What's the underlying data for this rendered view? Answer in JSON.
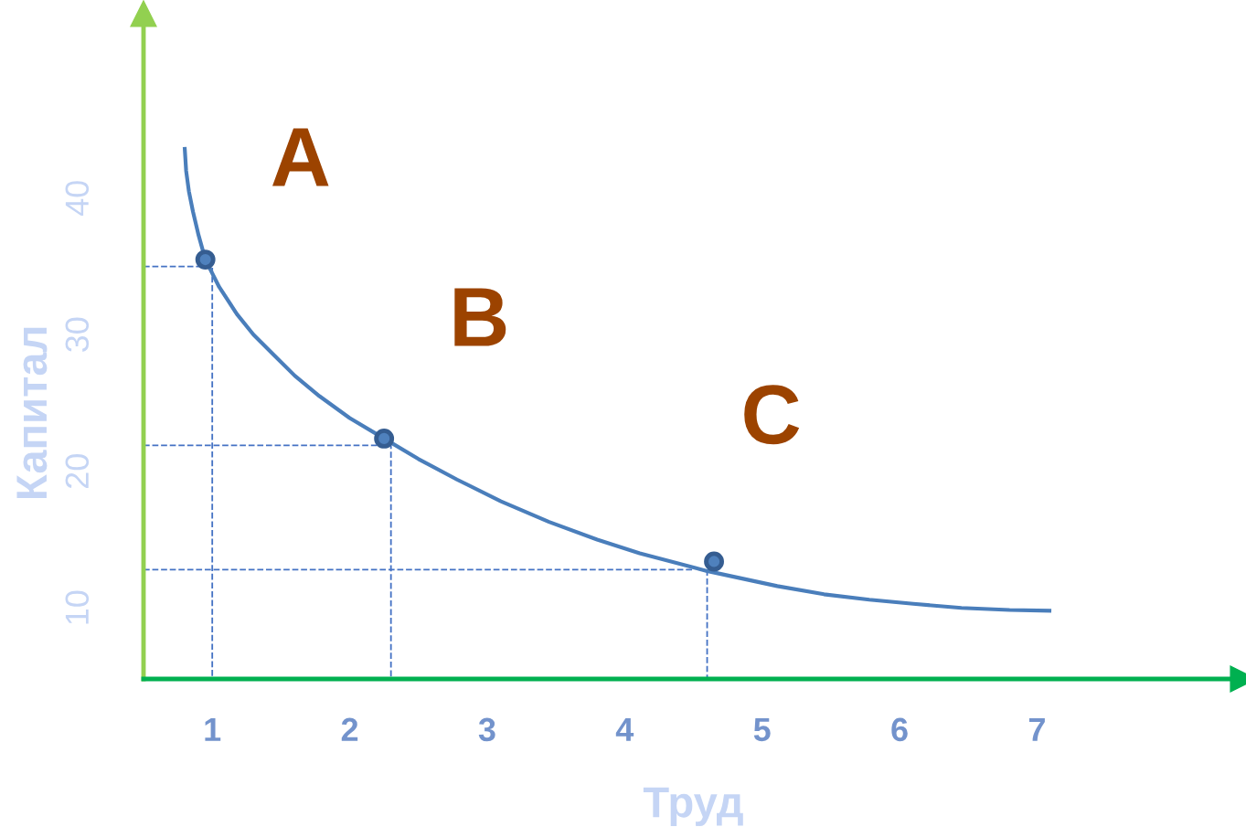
{
  "chart_data": {
    "type": "line",
    "xlabel": "Труд",
    "ylabel": "Капитал",
    "xlim": [
      0.5,
      8.5
    ],
    "ylim": [
      4.8,
      53.5
    ],
    "xticks": [
      1,
      2,
      3,
      4,
      5,
      6,
      7
    ],
    "yticks": [
      10,
      20,
      30,
      40
    ],
    "grid": false,
    "legend": false,
    "series": [
      {
        "color": "#4a7ebb",
        "marker": "none",
        "line_style": "solid",
        "x": [
          0.8,
          0.81,
          0.83,
          0.86,
          0.9,
          0.95,
          1.05,
          1.18,
          1.3,
          1.45,
          1.6,
          1.78,
          2.0,
          2.25,
          2.5,
          2.78,
          3.1,
          3.45,
          3.8,
          4.11,
          4.6,
          5.11,
          5.45,
          5.78,
          6.1,
          6.45,
          6.8,
          7.09
        ],
        "values": [
          43.6,
          42.0,
          40.5,
          39.0,
          37.3,
          35.5,
          33.5,
          31.5,
          30.0,
          28.5,
          27.0,
          25.5,
          23.9,
          22.4,
          20.9,
          19.4,
          17.8,
          16.3,
          15.0,
          14.0,
          12.7,
          11.6,
          11.0,
          10.6,
          10.3,
          10.0,
          9.85,
          9.8
        ]
      },
      {
        "type": "scatter",
        "color": "#355d91",
        "marker": "circle",
        "x": [
          0.95,
          2.25,
          4.65
        ],
        "values": [
          35.5,
          22.4,
          13.4
        ]
      },
      {
        "type": "line",
        "color": "#4472c4",
        "marker": "none",
        "line_style": "dashed",
        "x": [
          0.5,
          1.0,
          1.0
        ],
        "values": [
          35.0,
          35.0,
          4.8
        ]
      },
      {
        "type": "line",
        "color": "#4472c4",
        "marker": "none",
        "line_style": "dashed",
        "x": [
          0.5,
          2.3,
          2.3
        ],
        "values": [
          21.9,
          21.9,
          4.8
        ]
      },
      {
        "type": "line",
        "color": "#4472c4",
        "marker": "none",
        "line_style": "dashed",
        "x": [
          0.5,
          4.5
        ],
        "values": [
          12.8,
          12.8
        ]
      },
      {
        "type": "line",
        "color": "#4472c4",
        "marker": "none",
        "line_style": "dashed",
        "x": [
          4.6,
          4.6
        ],
        "values": [
          12.8,
          4.8
        ]
      }
    ],
    "annotations": [
      "A",
      "B",
      "C"
    ]
  }
}
